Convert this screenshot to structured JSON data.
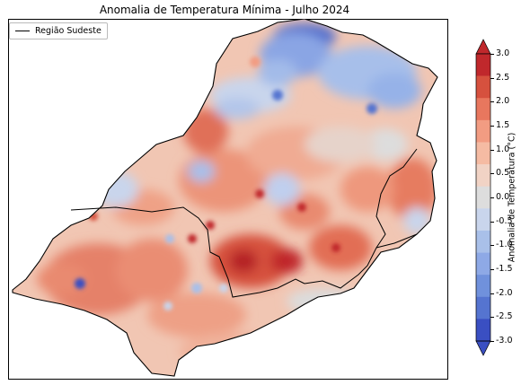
{
  "title": "Anomalia de Temperatura Mínima - Julho 2024",
  "legend": {
    "label": "Região Sudeste"
  },
  "colorbar": {
    "label": "Anomalia de Temperatura (°C)",
    "ticks": [
      "3.0",
      "2.5",
      "2.0",
      "1.5",
      "1.0",
      "0.5",
      "0.0",
      "-0.5",
      "-1.0",
      "-1.5",
      "-2.0",
      "-2.5",
      "-3.0"
    ],
    "colors": [
      "#c0282c",
      "#d6513e",
      "#e8775e",
      "#f29c82",
      "#f5bba3",
      "#f1d3c5",
      "#dddddd",
      "#c9d5ec",
      "#a9c0e9",
      "#8ea9e6",
      "#7091dc",
      "#5574d0",
      "#3a4fc2"
    ]
  }
}
